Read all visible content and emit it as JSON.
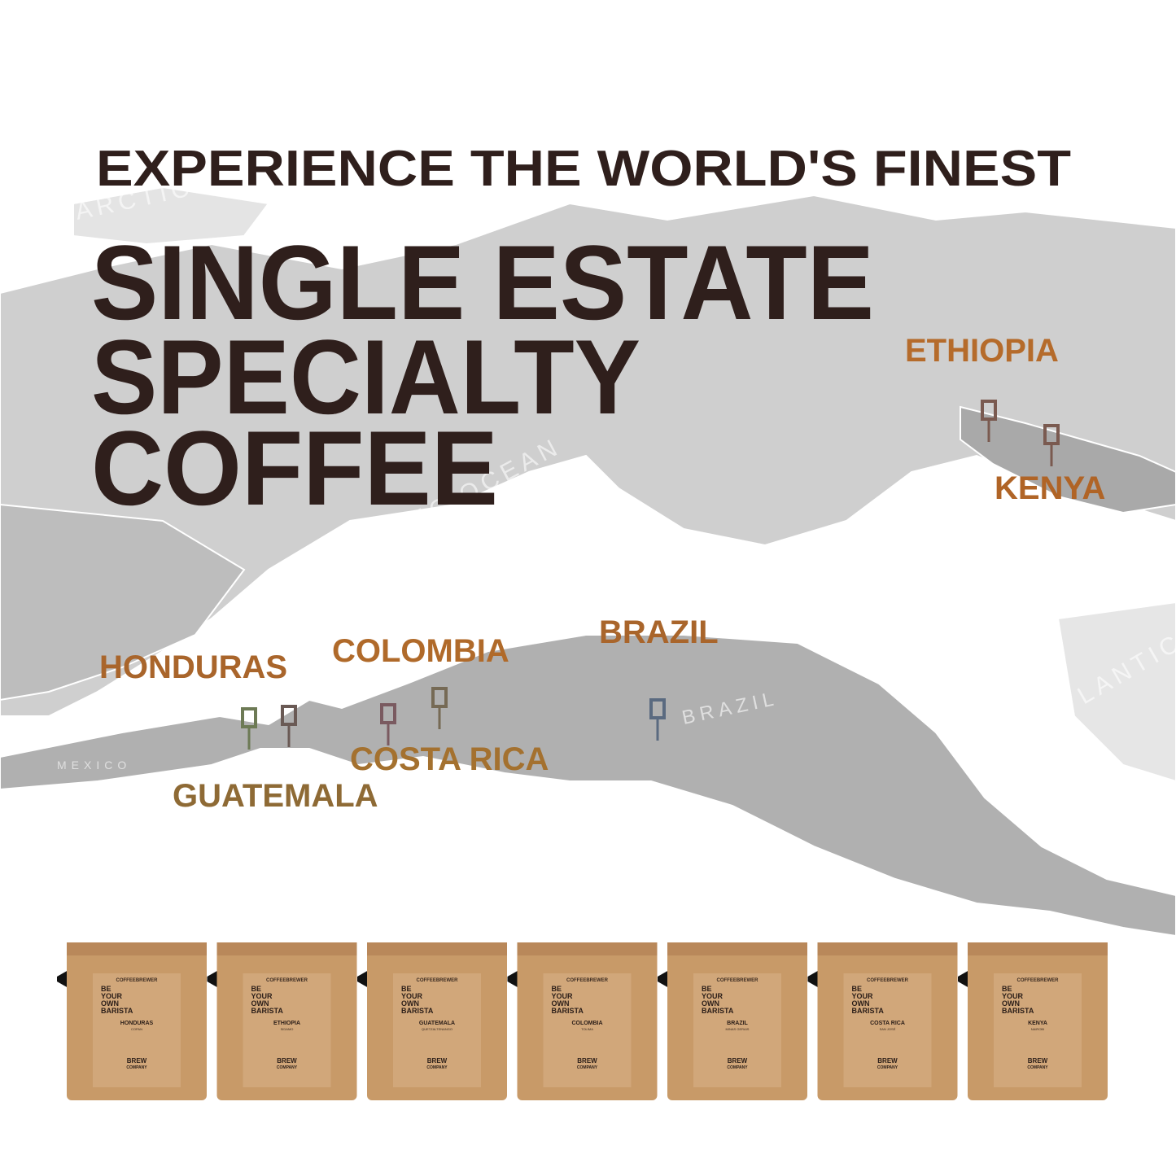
{
  "header": {
    "kicker": "EXPERIENCE THE WORLD'S FINEST",
    "headline": [
      "SINGLE ESTATE",
      "SPECIALTY",
      "COFFEE"
    ]
  },
  "map": {
    "labels": [
      "ARCTIC OCEAN",
      "ATLANTIC OCEAN",
      "MEXICO",
      "BRAZIL",
      "ATLANTIC OCEAN"
    ],
    "origins": [
      "ETHIOPIA",
      "KENYA",
      "HONDURAS",
      "COLOMBIA",
      "BRAZIL",
      "COSTA RICA",
      "GUATEMALA"
    ]
  },
  "pouch": {
    "brand": "COFFEEBREWER",
    "slogan": [
      "BE",
      "YOUR",
      "OWN",
      "BARISTA"
    ],
    "company": [
      "BREW",
      "COMPANY"
    ]
  },
  "pouches": [
    {
      "origin": "HONDURAS",
      "region": "COPAN"
    },
    {
      "origin": "ETHIOPIA",
      "region": "SIDAMO"
    },
    {
      "origin": "GUATEMALA",
      "region": "QUETZALTENANGO"
    },
    {
      "origin": "COLOMBIA",
      "region": "TOLIMA"
    },
    {
      "origin": "BRAZIL",
      "region": "MINAS GERAIS"
    },
    {
      "origin": "COSTA RICA",
      "region": "SAN JOSÉ"
    },
    {
      "origin": "KENYA",
      "region": "NAIROBI"
    }
  ]
}
